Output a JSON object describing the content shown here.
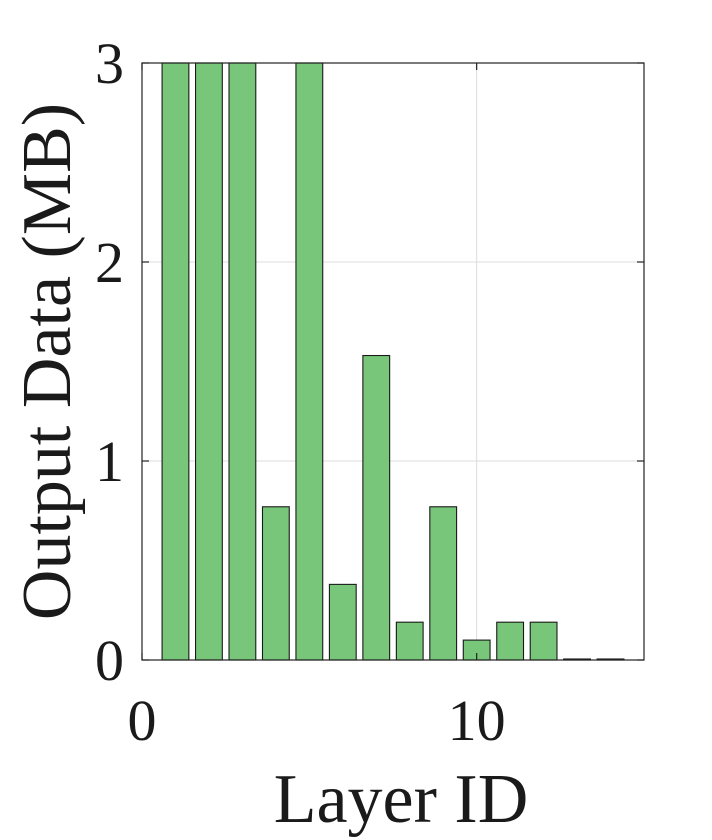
{
  "chart_data": {
    "type": "bar",
    "title": "",
    "xlabel": "Layer ID",
    "ylabel": "Output Data (MB)",
    "xlim": [
      0,
      15
    ],
    "ylim": [
      0,
      3
    ],
    "xticks": [
      0,
      10
    ],
    "yticks": [
      0,
      1,
      2,
      3
    ],
    "x": [
      1,
      2,
      3,
      4,
      5,
      6,
      7,
      8,
      9,
      10,
      11,
      12,
      13,
      14
    ],
    "values": [
      3.0,
      3.0,
      3.0,
      0.77,
      3.0,
      0.38,
      1.53,
      0.19,
      0.77,
      0.1,
      0.19,
      0.19,
      0.005,
      0.005
    ],
    "grid": true,
    "legend": "none",
    "bar_color": "#77c67a",
    "edge_color": "#1a1a1a"
  }
}
